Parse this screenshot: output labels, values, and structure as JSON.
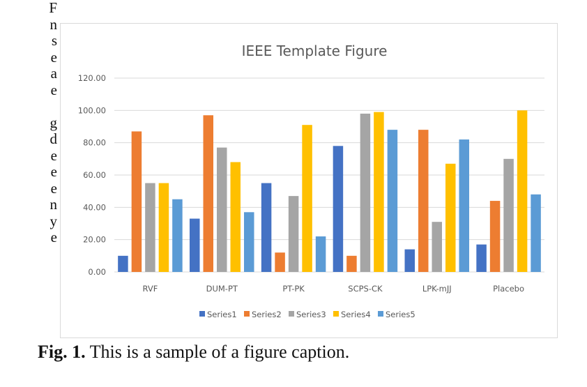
{
  "left_column_text": [
    "F",
    "n",
    "s",
    "e",
    "a",
    "e",
    "",
    "g",
    "d",
    "e",
    "e",
    "e",
    "n",
    "y",
    "e"
  ],
  "caption": {
    "label": "Fig. 1.",
    "text": "This is a sample of a figure caption."
  },
  "chart_data": {
    "type": "bar",
    "title": "IEEE Template Figure",
    "xlabel": "",
    "ylabel": "",
    "categories": [
      "RVF",
      "DUM-PT",
      "PT-PK",
      "SCPS-CK",
      "LPK-mJJ",
      "Placebo"
    ],
    "ylim": [
      0,
      120
    ],
    "yticks": [
      "0.00",
      "20.00",
      "40.00",
      "60.00",
      "80.00",
      "100.00",
      "120.00"
    ],
    "ytick_values": [
      0,
      20,
      40,
      60,
      80,
      100,
      120
    ],
    "grid": true,
    "legend_position": "bottom",
    "series": [
      {
        "name": "Series1",
        "color": "#4472c4",
        "values": [
          10,
          33,
          55,
          78,
          14,
          17
        ]
      },
      {
        "name": "Series2",
        "color": "#ed7d31",
        "values": [
          87,
          97,
          12,
          10,
          88,
          44
        ]
      },
      {
        "name": "Series3",
        "color": "#a5a5a5",
        "values": [
          55,
          77,
          47,
          98,
          31,
          70
        ]
      },
      {
        "name": "Series4",
        "color": "#ffc000",
        "values": [
          55,
          68,
          91,
          99,
          67,
          100
        ]
      },
      {
        "name": "Series5",
        "color": "#5b9bd5",
        "values": [
          45,
          37,
          22,
          88,
          82,
          48
        ]
      }
    ]
  }
}
